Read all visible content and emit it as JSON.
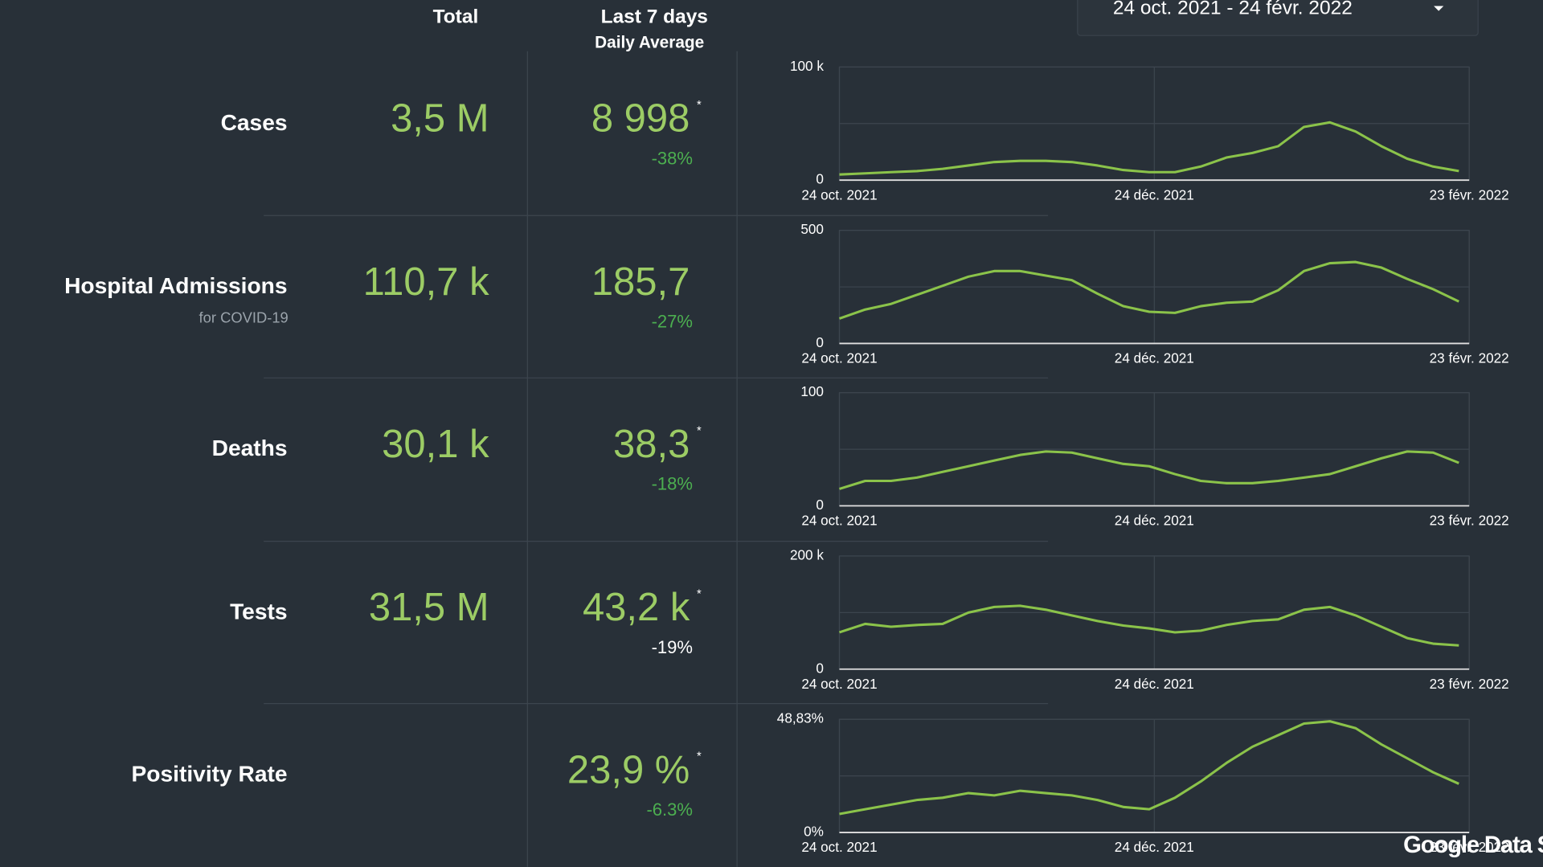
{
  "header": {
    "total": "Total",
    "last7": "Last 7 days",
    "daily_average": "Daily Average",
    "date_range": "24 oct. 2021 - 24 févr. 2022"
  },
  "rows": [
    {
      "label": "Cases",
      "total": "3,5 M",
      "average": "8 998",
      "note": "*",
      "change": "-38%",
      "change_color": "#4caf50"
    },
    {
      "label": "Hospital Admissions",
      "sublabel": "for COVID-19",
      "total": "110,7 k",
      "average": "185,7",
      "change": "-27%",
      "change_color": "#4caf50"
    },
    {
      "label": "Deaths",
      "total": "30,1 k",
      "average": "38,3",
      "note": "*",
      "change": "-18%",
      "change_color": "#4caf50"
    },
    {
      "label": "Tests",
      "total": "31,5 M",
      "average": "43,2 k",
      "note": "*",
      "change": "-19%",
      "change_color": "#ffffff"
    },
    {
      "label": "Positivity Rate",
      "average": "23,9 %",
      "note": "*",
      "change": "-6.3%",
      "change_color": "#4caf50"
    }
  ],
  "chart_data": [
    {
      "type": "line",
      "color": "#8bc34a",
      "grid": true,
      "x": [
        "2021-10-24",
        "2021-10-29",
        "2021-11-03",
        "2021-11-08",
        "2021-11-13",
        "2021-11-18",
        "2021-11-23",
        "2021-11-28",
        "2021-12-03",
        "2021-12-08",
        "2021-12-13",
        "2021-12-18",
        "2021-12-23",
        "2021-12-28",
        "2022-01-02",
        "2022-01-07",
        "2022-01-12",
        "2022-01-17",
        "2022-01-22",
        "2022-01-27",
        "2022-02-01",
        "2022-02-06",
        "2022-02-11",
        "2022-02-16",
        "2022-02-21"
      ],
      "values": [
        5000,
        6000,
        7000,
        8000,
        10000,
        13000,
        16000,
        17000,
        17000,
        16000,
        13000,
        9000,
        7000,
        7000,
        12000,
        20000,
        24000,
        30000,
        47000,
        51000,
        43000,
        30000,
        19000,
        12000,
        8000
      ],
      "xlim": [
        "2021-10-24",
        "2022-02-23"
      ],
      "xticks": [
        {
          "value": "2021-10-24",
          "label": "24 oct. 2021"
        },
        {
          "value": "2021-12-24",
          "label": "24 déc. 2021"
        },
        {
          "value": "2022-02-23",
          "label": "23 févr. 2022"
        }
      ],
      "ylim": [
        0,
        100000
      ],
      "yticks": [
        0,
        {
          "value": 100000,
          "label": "100 k"
        }
      ]
    },
    {
      "type": "line",
      "color": "#8bc34a",
      "grid": true,
      "x": [
        "2021-10-24",
        "2021-10-29",
        "2021-11-03",
        "2021-11-08",
        "2021-11-13",
        "2021-11-18",
        "2021-11-23",
        "2021-11-28",
        "2021-12-03",
        "2021-12-08",
        "2021-12-13",
        "2021-12-18",
        "2021-12-23",
        "2021-12-28",
        "2022-01-02",
        "2022-01-07",
        "2022-01-12",
        "2022-01-17",
        "2022-01-22",
        "2022-01-27",
        "2022-02-01",
        "2022-02-06",
        "2022-02-11",
        "2022-02-16",
        "2022-02-21"
      ],
      "values": [
        110,
        150,
        175,
        215,
        255,
        295,
        320,
        320,
        300,
        280,
        220,
        165,
        140,
        135,
        165,
        180,
        185,
        235,
        320,
        355,
        360,
        335,
        285,
        240,
        185
      ],
      "xlim": [
        "2021-10-24",
        "2022-02-23"
      ],
      "xticks": [
        {
          "value": "2021-10-24",
          "label": "24 oct. 2021"
        },
        {
          "value": "2021-12-24",
          "label": "24 déc. 2021"
        },
        {
          "value": "2022-02-23",
          "label": "23 févr. 2022"
        }
      ],
      "ylim": [
        0,
        500
      ],
      "yticks": [
        0,
        500
      ]
    },
    {
      "type": "line",
      "color": "#8bc34a",
      "grid": true,
      "x": [
        "2021-10-24",
        "2021-10-29",
        "2021-11-03",
        "2021-11-08",
        "2021-11-13",
        "2021-11-18",
        "2021-11-23",
        "2021-11-28",
        "2021-12-03",
        "2021-12-08",
        "2021-12-13",
        "2021-12-18",
        "2021-12-23",
        "2021-12-28",
        "2022-01-02",
        "2022-01-07",
        "2022-01-12",
        "2022-01-17",
        "2022-01-22",
        "2022-01-27",
        "2022-02-01",
        "2022-02-06",
        "2022-02-11",
        "2022-02-16",
        "2022-02-21"
      ],
      "values": [
        15,
        22,
        22,
        25,
        30,
        35,
        40,
        45,
        48,
        47,
        42,
        37,
        35,
        28,
        22,
        20,
        20,
        22,
        25,
        28,
        35,
        42,
        48,
        47,
        38
      ],
      "xlim": [
        "2021-10-24",
        "2022-02-23"
      ],
      "xticks": [
        {
          "value": "2021-10-24",
          "label": "24 oct. 2021"
        },
        {
          "value": "2021-12-24",
          "label": "24 déc. 2021"
        },
        {
          "value": "2022-02-23",
          "label": "23 févr. 2022"
        }
      ],
      "ylim": [
        0,
        100
      ],
      "yticks": [
        0,
        100
      ]
    },
    {
      "type": "line",
      "color": "#8bc34a",
      "grid": true,
      "x": [
        "2021-10-24",
        "2021-10-29",
        "2021-11-03",
        "2021-11-08",
        "2021-11-13",
        "2021-11-18",
        "2021-11-23",
        "2021-11-28",
        "2021-12-03",
        "2021-12-08",
        "2021-12-13",
        "2021-12-18",
        "2021-12-23",
        "2021-12-28",
        "2022-01-02",
        "2022-01-07",
        "2022-01-12",
        "2022-01-17",
        "2022-01-22",
        "2022-01-27",
        "2022-02-01",
        "2022-02-06",
        "2022-02-11",
        "2022-02-16",
        "2022-02-21"
      ],
      "values": [
        65000,
        80000,
        75000,
        78000,
        80000,
        100000,
        110000,
        112000,
        105000,
        95000,
        85000,
        77000,
        72000,
        65000,
        68000,
        78000,
        85000,
        88000,
        105000,
        110000,
        95000,
        75000,
        55000,
        45000,
        42000
      ],
      "xlim": [
        "2021-10-24",
        "2022-02-23"
      ],
      "xticks": [
        {
          "value": "2021-10-24",
          "label": "24 oct. 2021"
        },
        {
          "value": "2021-12-24",
          "label": "24 déc. 2021"
        },
        {
          "value": "2022-02-23",
          "label": "23 févr. 2022"
        }
      ],
      "ylim": [
        0,
        200000
      ],
      "yticks": [
        0,
        {
          "value": 200000,
          "label": "200 k"
        }
      ]
    },
    {
      "type": "line",
      "color": "#8bc34a",
      "grid": true,
      "x": [
        "2021-10-24",
        "2021-10-29",
        "2021-11-03",
        "2021-11-08",
        "2021-11-13",
        "2021-11-18",
        "2021-11-23",
        "2021-11-28",
        "2021-12-03",
        "2021-12-08",
        "2021-12-13",
        "2021-12-18",
        "2021-12-23",
        "2021-12-28",
        "2022-01-02",
        "2022-01-07",
        "2022-01-12",
        "2022-01-17",
        "2022-01-22",
        "2022-01-27",
        "2022-02-01",
        "2022-02-06",
        "2022-02-11",
        "2022-02-16",
        "2022-02-21"
      ],
      "values": [
        8,
        10,
        12,
        14,
        15,
        17,
        16,
        18,
        17,
        16,
        14,
        11,
        10,
        15,
        22,
        30,
        37,
        42,
        47,
        48,
        45,
        38,
        32,
        26,
        21
      ],
      "xlim": [
        "2021-10-24",
        "2022-02-23"
      ],
      "xticks": [
        {
          "value": "2021-10-24",
          "label": "24 oct. 2021"
        },
        {
          "value": "2021-12-24",
          "label": "24 déc. 2021"
        },
        {
          "value": "2022-02-23",
          "label": "23 févr. 2022"
        }
      ],
      "ylim": [
        0,
        48.83
      ],
      "yticks": [
        {
          "value": 0,
          "label": "0%"
        },
        {
          "value": 48.83,
          "label": "48,83%"
        }
      ]
    }
  ],
  "footer": {
    "brand": "Google Data S"
  }
}
